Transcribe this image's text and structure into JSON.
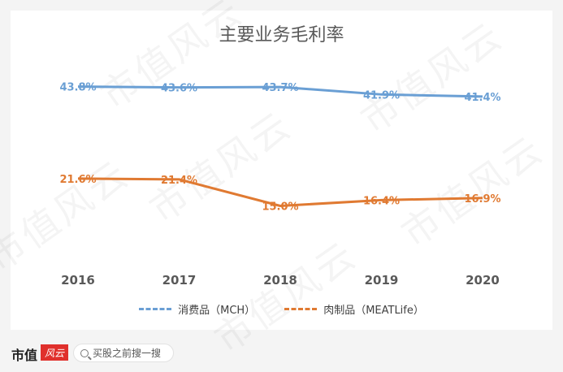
{
  "chart_data": {
    "type": "line",
    "title": "主要业务毛利率",
    "categories": [
      "2016",
      "2017",
      "2018",
      "2019",
      "2020"
    ],
    "ylim": [
      0,
      50
    ],
    "grid": false,
    "legend_position": "bottom",
    "series": [
      {
        "name": "消费品（MCH）",
        "color": "#6a9fd4",
        "values": [
          43.8,
          43.6,
          43.7,
          41.9,
          41.4
        ],
        "labels": [
          "43.8%",
          "43.6%",
          "43.7%",
          "41.9%",
          "41.4%"
        ]
      },
      {
        "name": "肉制品（MEATLife）",
        "color": "#e07a32",
        "values": [
          21.6,
          21.4,
          15.0,
          16.4,
          16.9
        ],
        "labels": [
          "21.6%",
          "21.4%",
          "15.0%",
          "16.4%",
          "16.9%"
        ]
      }
    ]
  },
  "watermark": "市值风云",
  "footer": {
    "logo_text": "市值",
    "logo_badge": "风云",
    "search_placeholder": "买股之前搜一搜",
    "search_icon": "search-icon"
  }
}
